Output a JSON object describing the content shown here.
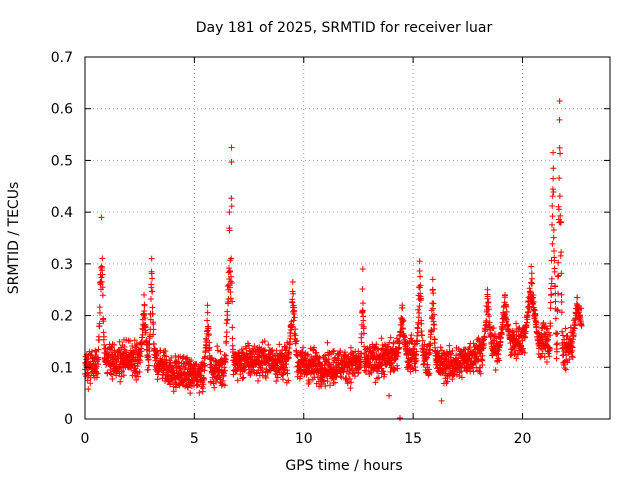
{
  "chart_data": {
    "type": "scatter",
    "title": "Day 181 of 2025, SRMTID for receiver luar",
    "xlabel": "GPS time / hours",
    "ylabel": "SRMTID / TECUs",
    "xlim": [
      0,
      24
    ],
    "ylim": [
      0,
      0.7
    ],
    "x_ticks": [
      0,
      5,
      10,
      15,
      20
    ],
    "y_ticks": [
      0,
      0.1,
      0.2,
      0.3,
      0.4,
      0.5,
      0.6,
      0.7
    ],
    "x_tick_labels": [
      "0",
      "5",
      "10",
      "15",
      "20"
    ],
    "y_tick_labels": [
      "0",
      "0.1",
      "0.2",
      "0.3",
      "0.4",
      "0.5",
      "0.6",
      "0.7"
    ],
    "grid": true,
    "marker": "+",
    "color": "#ff0000",
    "sample_rate_per_hour": 120,
    "baseline": {
      "x": [
        0,
        1,
        2,
        3,
        4,
        5,
        6,
        7,
        8,
        9,
        10,
        11,
        12,
        13,
        14,
        15,
        16,
        17,
        18,
        19,
        20,
        21,
        22,
        22.7
      ],
      "y": [
        0.1,
        0.11,
        0.115,
        0.12,
        0.09,
        0.085,
        0.095,
        0.11,
        0.115,
        0.11,
        0.105,
        0.1,
        0.105,
        0.11,
        0.12,
        0.125,
        0.105,
        0.105,
        0.13,
        0.14,
        0.155,
        0.15,
        0.13,
        0.18
      ],
      "spread": 0.032
    },
    "bursts": [
      {
        "x_center": 0.75,
        "peak": 0.39,
        "width": 0.15
      },
      {
        "x_center": 2.7,
        "peak": 0.24,
        "width": 0.15
      },
      {
        "x_center": 3.05,
        "peak": 0.31,
        "width": 0.12
      },
      {
        "x_center": 5.6,
        "peak": 0.22,
        "width": 0.15
      },
      {
        "x_center": 6.6,
        "peak": 0.4,
        "width": 0.18
      },
      {
        "x_center": 6.7,
        "peak": 0.525,
        "width": 0.04
      },
      {
        "x_center": 9.5,
        "peak": 0.265,
        "width": 0.2
      },
      {
        "x_center": 12.7,
        "peak": 0.29,
        "width": 0.08
      },
      {
        "x_center": 14.5,
        "peak": 0.22,
        "width": 0.2
      },
      {
        "x_center": 15.3,
        "peak": 0.305,
        "width": 0.15
      },
      {
        "x_center": 15.9,
        "peak": 0.27,
        "width": 0.15
      },
      {
        "x_center": 18.4,
        "peak": 0.25,
        "width": 0.2
      },
      {
        "x_center": 19.2,
        "peak": 0.24,
        "width": 0.25
      },
      {
        "x_center": 20.4,
        "peak": 0.295,
        "width": 0.3
      },
      {
        "x_center": 21.4,
        "peak": 0.515,
        "width": 0.15
      },
      {
        "x_center": 21.7,
        "peak": 0.615,
        "width": 0.12
      },
      {
        "x_center": 22.5,
        "peak": 0.235,
        "width": 0.2
      }
    ],
    "outliers": [
      {
        "x": 14.4,
        "y": 0.002
      },
      {
        "x": 16.3,
        "y": 0.035
      },
      {
        "x": 13.9,
        "y": 0.045
      }
    ]
  }
}
